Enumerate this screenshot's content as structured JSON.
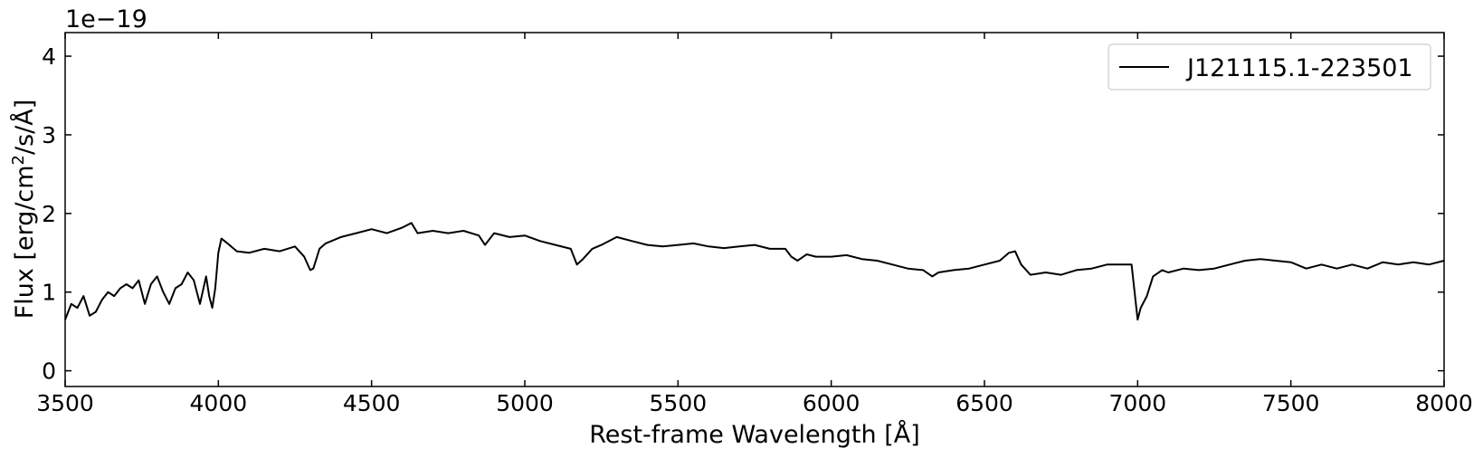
{
  "chart_data": {
    "type": "line",
    "title": "",
    "xlabel": "Rest-frame Wavelength [Å]",
    "ylabel_parts": {
      "before": "Flux [erg/cm",
      "sup": "2",
      "after": "/s/Å]"
    },
    "ylabel": "Flux [erg/cm2/s/Å]",
    "y_offset_label": "1e−19",
    "xlim": [
      3500,
      8000
    ],
    "ylim": [
      -0.2,
      4.3
    ],
    "xticks": [
      3500,
      4000,
      4500,
      5000,
      5500,
      6000,
      6500,
      7000,
      7500,
      8000
    ],
    "xtick_labels": [
      "3500",
      "4000",
      "4500",
      "5000",
      "5500",
      "6000",
      "6500",
      "7000",
      "7500",
      "8000"
    ],
    "yticks": [
      0,
      1,
      2,
      3,
      4
    ],
    "ytick_labels": [
      "0",
      "1",
      "2",
      "3",
      "4"
    ],
    "grid": false,
    "legend_position": "top-right",
    "series": [
      {
        "name": "J121115.1-223501",
        "color": "#000000",
        "x": [
          3500,
          3520,
          3540,
          3560,
          3580,
          3600,
          3620,
          3640,
          3660,
          3680,
          3700,
          3720,
          3740,
          3760,
          3780,
          3800,
          3820,
          3840,
          3860,
          3880,
          3900,
          3920,
          3940,
          3960,
          3970,
          3980,
          3990,
          4000,
          4010,
          4030,
          4060,
          4100,
          4150,
          4200,
          4250,
          4280,
          4300,
          4310,
          4330,
          4350,
          4400,
          4450,
          4500,
          4550,
          4600,
          4630,
          4650,
          4700,
          4750,
          4800,
          4850,
          4870,
          4900,
          4950,
          5000,
          5050,
          5100,
          5150,
          5170,
          5190,
          5220,
          5250,
          5300,
          5350,
          5400,
          5450,
          5500,
          5550,
          5600,
          5650,
          5700,
          5750,
          5800,
          5850,
          5870,
          5890,
          5920,
          5950,
          6000,
          6050,
          6100,
          6150,
          6200,
          6250,
          6300,
          6330,
          6350,
          6400,
          6450,
          6500,
          6550,
          6580,
          6600,
          6620,
          6650,
          6700,
          6750,
          6800,
          6850,
          6900,
          6950,
          6980,
          7000,
          7010,
          7030,
          7050,
          7080,
          7100,
          7150,
          7200,
          7250,
          7300,
          7350,
          7400,
          7450,
          7500,
          7550,
          7600,
          7650,
          7700,
          7750,
          7800,
          7850,
          7900,
          7950,
          8000
        ],
        "y": [
          0.65,
          0.85,
          0.8,
          0.95,
          0.7,
          0.75,
          0.9,
          1.0,
          0.95,
          1.05,
          1.1,
          1.05,
          1.15,
          0.85,
          1.1,
          1.2,
          1.0,
          0.85,
          1.05,
          1.1,
          1.25,
          1.15,
          0.85,
          1.2,
          0.95,
          0.8,
          1.05,
          1.5,
          1.68,
          1.62,
          1.52,
          1.5,
          1.55,
          1.52,
          1.58,
          1.45,
          1.28,
          1.3,
          1.55,
          1.62,
          1.7,
          1.75,
          1.8,
          1.75,
          1.82,
          1.88,
          1.75,
          1.78,
          1.75,
          1.78,
          1.72,
          1.6,
          1.75,
          1.7,
          1.72,
          1.65,
          1.6,
          1.55,
          1.35,
          1.42,
          1.55,
          1.6,
          1.7,
          1.65,
          1.6,
          1.58,
          1.6,
          1.62,
          1.58,
          1.56,
          1.58,
          1.6,
          1.55,
          1.55,
          1.45,
          1.4,
          1.48,
          1.45,
          1.45,
          1.47,
          1.42,
          1.4,
          1.35,
          1.3,
          1.28,
          1.2,
          1.25,
          1.28,
          1.3,
          1.35,
          1.4,
          1.5,
          1.52,
          1.35,
          1.22,
          1.25,
          1.22,
          1.28,
          1.3,
          1.35,
          1.35,
          1.35,
          0.65,
          0.8,
          0.95,
          1.2,
          1.28,
          1.25,
          1.3,
          1.28,
          1.3,
          1.35,
          1.4,
          1.42,
          1.4,
          1.38,
          1.3,
          1.35,
          1.3,
          1.35,
          1.3,
          1.38,
          1.35,
          1.38,
          1.35,
          1.4
        ]
      }
    ]
  }
}
